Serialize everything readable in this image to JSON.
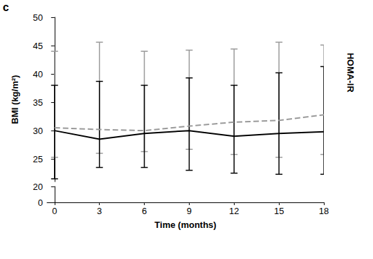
{
  "chart_data": [
    {
      "type": "line",
      "title": "c",
      "ylabel": "BMI (kg/m²)",
      "annotations": [
        "HOMA-IR"
      ],
      "x": [
        0,
        3,
        6,
        9,
        12,
        15,
        18
      ],
      "xlim": [
        -0.5,
        18
      ],
      "xticks": [
        0,
        3,
        6,
        9,
        12,
        15,
        18
      ],
      "ylim": [
        21,
        50
      ],
      "yticks": [
        25,
        30,
        35,
        40,
        45,
        50
      ],
      "grid": false,
      "tick_labels": "y",
      "series": [
        {
          "color": "#000000",
          "line_style": "solid",
          "marker": "none",
          "values": [
            30,
            28.5,
            29.5,
            30,
            29,
            29.5,
            29.8
          ],
          "lower": [
            21.5,
            23.5,
            23.5,
            23,
            22.5,
            22.3,
            22.3
          ],
          "upper": [
            38,
            38.7,
            38,
            39.3,
            38,
            40.2,
            41.3
          ]
        },
        {
          "color": "#999999",
          "line_style": "dashed",
          "marker": "none",
          "values": [
            30.5,
            30.2,
            30,
            30.8,
            31.5,
            31.8,
            32.8
          ],
          "lower": [
            25.3,
            26,
            26.3,
            26.7,
            25.8,
            25.3,
            25.8
          ],
          "upper": [
            44,
            45.6,
            44,
            44.2,
            44.4,
            45.6,
            45.1
          ]
        }
      ]
    },
    {
      "type": "line",
      "xlabel": "Time (months)",
      "xlim": [
        -0.5,
        18
      ],
      "xticks": [
        0,
        3,
        6,
        9,
        12,
        15,
        18
      ],
      "ylim": [
        0,
        20
      ],
      "yticks": [
        0,
        20
      ],
      "grid": false
    }
  ]
}
